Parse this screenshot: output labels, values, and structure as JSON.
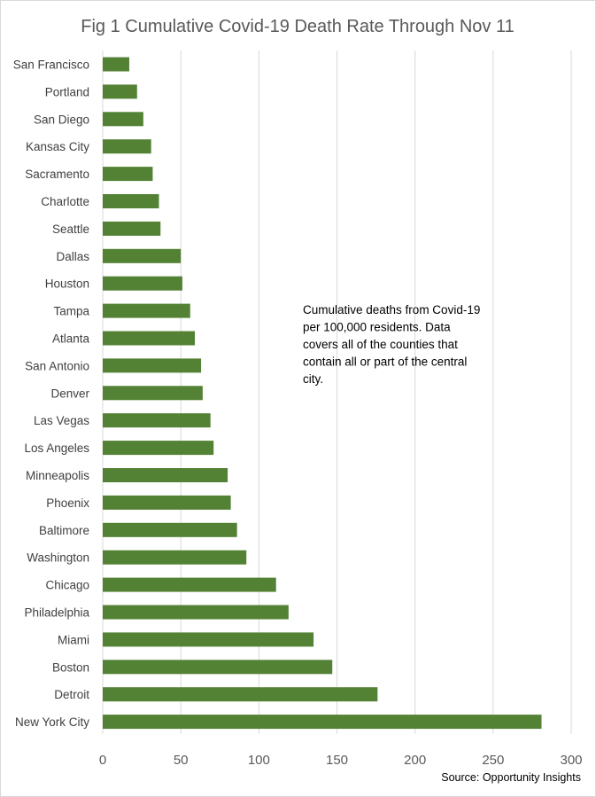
{
  "chart_data": {
    "type": "bar",
    "orientation": "horizontal",
    "title": "Fig 1 Cumulative Covid-19 Death Rate Through Nov 11",
    "categories": [
      "San Francisco",
      "Portland",
      "San Diego",
      "Kansas City",
      "Sacramento",
      "Charlotte",
      "Seattle",
      "Dallas",
      "Houston",
      "Tampa",
      "Atlanta",
      "San Antonio",
      "Denver",
      "Las Vegas",
      "Los Angeles",
      "Minneapolis",
      "Phoenix",
      "Baltimore",
      "Washington",
      "Chicago",
      "Philadelphia",
      "Miami",
      "Boston",
      "Detroit",
      "New York City"
    ],
    "values": [
      17,
      22,
      26,
      31,
      32,
      36,
      37,
      50,
      51,
      56,
      59,
      63,
      64,
      69,
      71,
      80,
      82,
      86,
      92,
      111,
      119,
      135,
      147,
      176,
      281
    ],
    "xlim": [
      0,
      300
    ],
    "xticks": [
      "0",
      "50",
      "100",
      "150",
      "200",
      "250",
      "300"
    ],
    "xlabel": "",
    "ylabel": "",
    "grid": true,
    "bar_color": "#548235",
    "annotation": [
      "Cumulative deaths from Covid-19",
      "per 100,000 residents. Data",
      "covers all of the counties that",
      "contain all or part of the central",
      "city."
    ],
    "source": "Source: Opportunity Insights"
  }
}
